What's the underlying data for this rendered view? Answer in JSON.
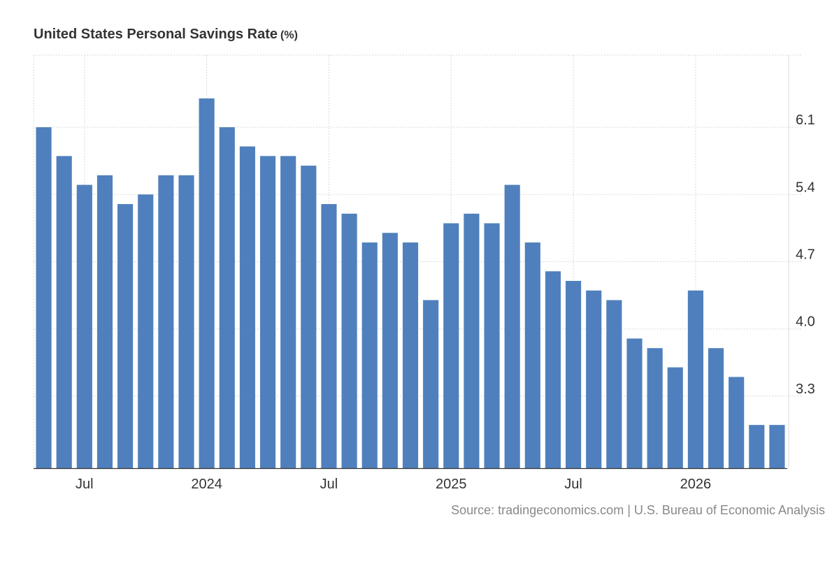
{
  "title": "United States Personal Savings Rate",
  "unit": "(%)",
  "source": "Source: tradingeconomics.com | U.S. Bureau of Economic Analysis",
  "colors": {
    "bar": "#4f80bd",
    "grid": "#d9d9d9",
    "axis": "#333333"
  },
  "chart_data": {
    "type": "bar",
    "categories": [
      "2023-05",
      "2023-06",
      "2023-07",
      "2023-08",
      "2023-09",
      "2023-10",
      "2023-11",
      "2023-12",
      "2024-01",
      "2024-02",
      "2024-03",
      "2024-04",
      "2024-05",
      "2024-06",
      "2024-07",
      "2024-08",
      "2024-09",
      "2024-10",
      "2024-11",
      "2024-12",
      "2025-01",
      "2025-02",
      "2025-03",
      "2025-04",
      "2025-05",
      "2025-06",
      "2025-07",
      "2025-08",
      "2025-09",
      "2025-10",
      "2025-11",
      "2025-12",
      "2026-01",
      "2026-02",
      "2026-03",
      "2026-04",
      "2026-05"
    ],
    "values": [
      6.1,
      5.8,
      5.5,
      5.6,
      5.3,
      5.4,
      5.6,
      5.6,
      6.4,
      6.1,
      5.9,
      5.8,
      5.8,
      5.7,
      5.3,
      5.2,
      4.9,
      5.0,
      4.9,
      4.3,
      5.1,
      5.2,
      5.1,
      5.5,
      4.9,
      4.6,
      4.5,
      4.4,
      4.3,
      3.9,
      3.8,
      3.6,
      4.4,
      3.8,
      3.5,
      3.0,
      3.0
    ],
    "ylim": [
      2.55,
      6.85
    ],
    "yticks": [
      "3.3",
      "4.0",
      "4.7",
      "5.4",
      "6.1"
    ],
    "xtick_labels": [
      {
        "label": "Jul",
        "at": "2023-07"
      },
      {
        "label": "2024",
        "at": "2024-01"
      },
      {
        "label": "Jul",
        "at": "2024-07"
      },
      {
        "label": "2025",
        "at": "2025-01"
      },
      {
        "label": "Jul",
        "at": "2025-07"
      },
      {
        "label": "2026",
        "at": "2026-01"
      }
    ],
    "grid": true
  }
}
